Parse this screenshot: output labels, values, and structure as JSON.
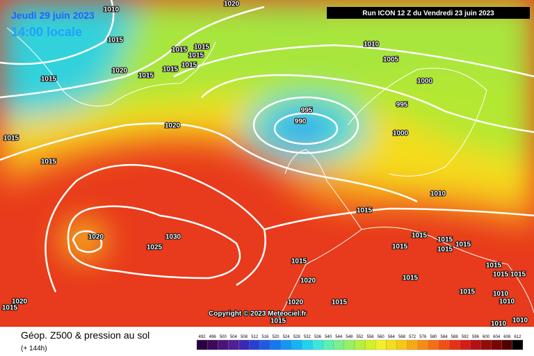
{
  "header": {
    "date": "Jeudi 29 juin 2023",
    "time": "14:00 locale",
    "run": "Run ICON 12 Z du Vendredi 23 juin 2023"
  },
  "footer": {
    "title": "Géop. Z500 & pression au sol",
    "lead": "(+ 144h)",
    "copyright": "Copyright © 2023 Meteociel.fr"
  },
  "isobar_labels": [
    "1010",
    "1020",
    "1015",
    "1015",
    "1015",
    "1015",
    "1015",
    "1020",
    "1015",
    "1015",
    "1015",
    "1010",
    "1005",
    "1000",
    "995",
    "995",
    "990",
    "1000",
    "1020",
    "1015",
    "1015",
    "1010",
    "1015",
    "1020",
    "1025",
    "1030",
    "1015",
    "1015",
    "1015",
    "1015",
    "1015",
    "1015",
    "1015",
    "1015",
    "1020",
    "1015",
    "1020",
    "1015",
    "1020",
    "1010",
    "1010",
    "1015",
    "1015",
    "1010",
    "1010",
    "1015",
    "1015"
  ],
  "colorbar": {
    "labels": [
      492,
      496,
      500,
      504,
      508,
      512,
      516,
      520,
      524,
      528,
      532,
      536,
      540,
      544,
      548,
      552,
      556,
      560,
      564,
      568,
      572,
      576,
      580,
      584,
      588,
      592,
      596,
      600,
      604,
      608,
      612
    ],
    "colors": [
      "#2a0040",
      "#3c0a5a",
      "#4a1478",
      "#501e96",
      "#3c28b4",
      "#2840d2",
      "#1e5ae6",
      "#1478f0",
      "#1496f5",
      "#14b4f5",
      "#1ed2f0",
      "#3ce6dc",
      "#5af0b4",
      "#78f08c",
      "#96f064",
      "#b4f03c",
      "#d2f028",
      "#f0f028",
      "#f5dc1e",
      "#f5c814",
      "#f5aa14",
      "#f58c14",
      "#f56e14",
      "#f05014",
      "#e63214",
      "#d21e14",
      "#b40f14",
      "#960a0a",
      "#780505",
      "#500000",
      "#000000"
    ]
  }
}
